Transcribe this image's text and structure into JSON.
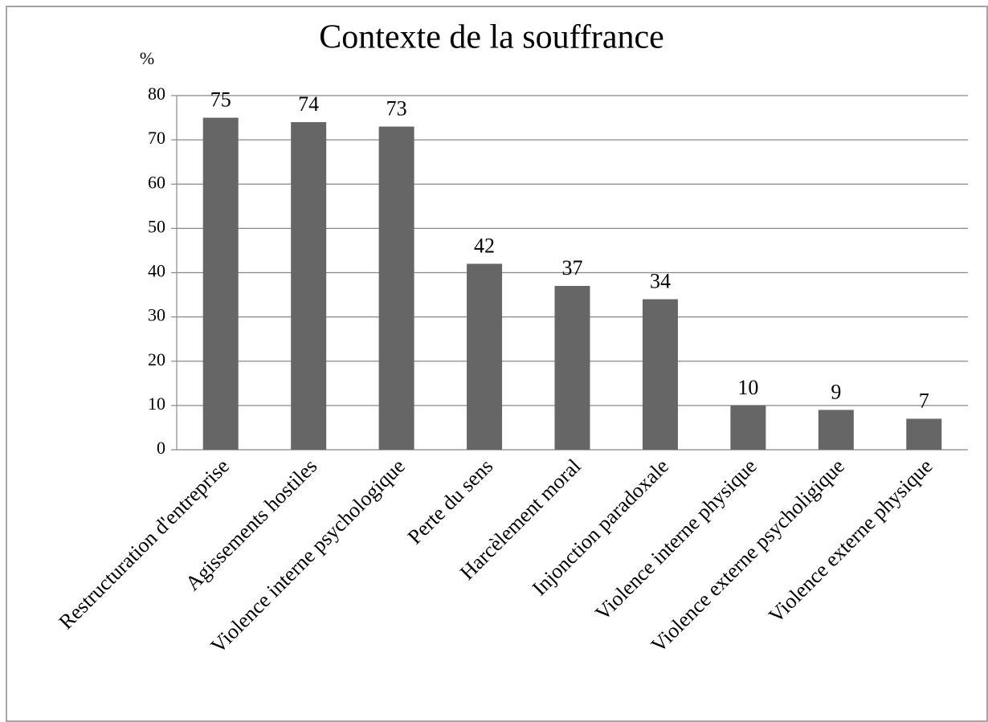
{
  "chart_data": {
    "type": "bar",
    "title": "Contexte de la souffrance",
    "y_label": "%",
    "categories": [
      "Restructuration d'entreprise",
      "Agissements hostiles",
      "Violence interne psychologique",
      "Perte du sens",
      "Harcèlement moral",
      "Injonction paradoxale",
      "Violence interne physique",
      "Violence externe psycholigique",
      "Violence externe physique"
    ],
    "values": [
      75,
      74,
      73,
      42,
      37,
      34,
      10,
      9,
      7
    ],
    "color": "#666666",
    "ylim": [
      0,
      80
    ],
    "yticks": [
      0,
      10,
      20,
      30,
      40,
      50,
      60,
      70,
      80
    ],
    "grid": true
  }
}
